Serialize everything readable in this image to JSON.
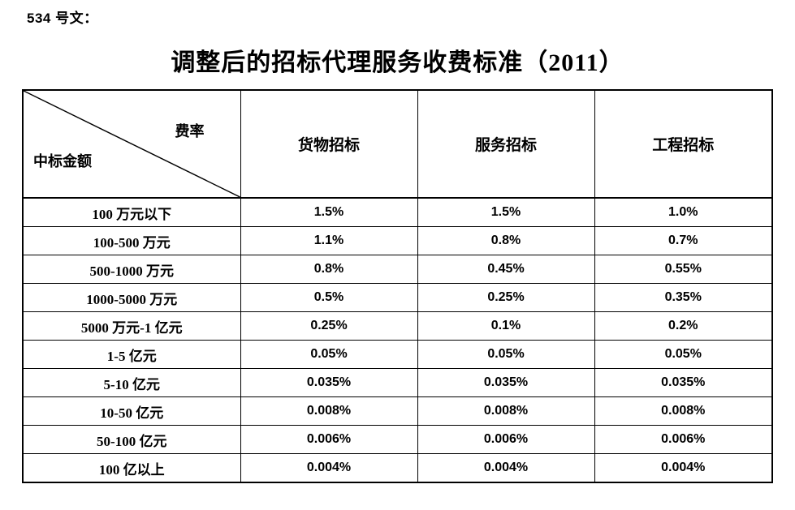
{
  "page": {
    "doc_ref": "534 号文：",
    "title": "调整后的招标代理服务收费标准（2011）"
  },
  "table": {
    "corner": {
      "top_right_label": "费率",
      "bottom_left_label": "中标金额"
    },
    "columns": [
      "货物招标",
      "服务招标",
      "工程招标"
    ],
    "rows": [
      {
        "label": "100 万元以下",
        "values": [
          "1.5%",
          "1.5%",
          "1.0%"
        ]
      },
      {
        "label": "100-500 万元",
        "values": [
          "1.1%",
          "0.8%",
          "0.7%"
        ]
      },
      {
        "label": "500-1000 万元",
        "values": [
          "0.8%",
          "0.45%",
          "0.55%"
        ]
      },
      {
        "label": "1000-5000 万元",
        "values": [
          "0.5%",
          "0.25%",
          "0.35%"
        ]
      },
      {
        "label": "5000 万元-1 亿元",
        "values": [
          "0.25%",
          "0.1%",
          "0.2%"
        ]
      },
      {
        "label": "1-5 亿元",
        "values": [
          "0.05%",
          "0.05%",
          "0.05%"
        ]
      },
      {
        "label": "5-10 亿元",
        "values": [
          "0.035%",
          "0.035%",
          "0.035%"
        ]
      },
      {
        "label": "10-50 亿元",
        "values": [
          "0.008%",
          "0.008%",
          "0.008%"
        ]
      },
      {
        "label": "50-100 亿元",
        "values": [
          "0.006%",
          "0.006%",
          "0.006%"
        ]
      },
      {
        "label": "100 亿以上",
        "values": [
          "0.004%",
          "0.004%",
          "0.004%"
        ]
      }
    ],
    "border_color": "#000000",
    "background_color": "#ffffff"
  }
}
